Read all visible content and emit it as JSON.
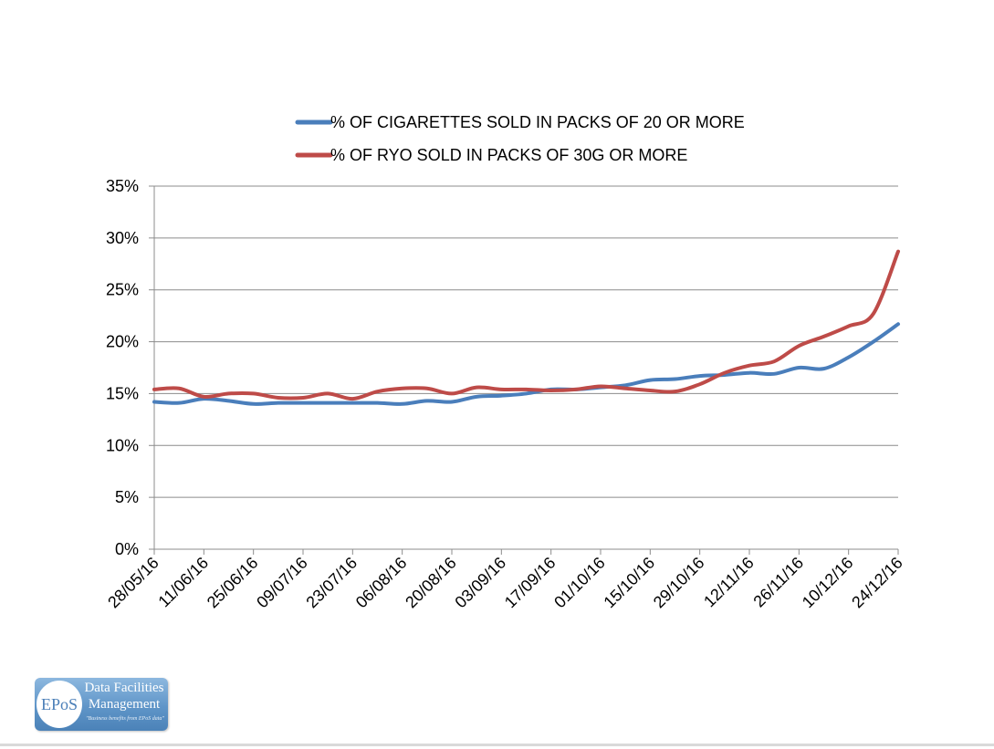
{
  "chart_data": {
    "type": "line",
    "title": "",
    "xlabel": "",
    "ylabel": "",
    "x": [
      "28/05/16",
      "04/06/16",
      "11/06/16",
      "18/06/16",
      "25/06/16",
      "02/07/16",
      "09/07/16",
      "16/07/16",
      "23/07/16",
      "30/07/16",
      "06/08/16",
      "13/08/16",
      "20/08/16",
      "27/08/16",
      "03/09/16",
      "10/09/16",
      "17/09/16",
      "24/09/16",
      "01/10/16",
      "08/10/16",
      "15/10/16",
      "22/10/16",
      "29/10/16",
      "05/11/16",
      "12/11/16",
      "19/11/16",
      "26/11/16",
      "03/12/16",
      "10/12/16",
      "17/12/16",
      "24/12/16"
    ],
    "x_tick_labels": [
      "28/05/16",
      "11/06/16",
      "25/06/16",
      "09/07/16",
      "23/07/16",
      "06/08/16",
      "20/08/16",
      "03/09/16",
      "17/09/16",
      "01/10/16",
      "15/10/16",
      "29/10/16",
      "12/11/16",
      "26/11/16",
      "10/12/16",
      "24/12/16"
    ],
    "y_ticks": [
      "0%",
      "5%",
      "10%",
      "15%",
      "20%",
      "25%",
      "30%",
      "35%"
    ],
    "ylim": [
      0,
      35
    ],
    "y_unit": "%",
    "grid": "horizontal",
    "legend_position": "top",
    "series": [
      {
        "name": "% OF CIGARETTES SOLD IN PACKS OF 20 OR MORE",
        "color": "#4a7ebb",
        "values": [
          14.2,
          14.1,
          14.5,
          14.3,
          14.0,
          14.1,
          14.1,
          14.1,
          14.1,
          14.1,
          14.0,
          14.3,
          14.2,
          14.7,
          14.8,
          15.0,
          15.4,
          15.4,
          15.6,
          15.8,
          16.3,
          16.4,
          16.7,
          16.8,
          17.0,
          16.9,
          17.5,
          17.4,
          18.5,
          20.0,
          21.7
        ]
      },
      {
        "name": "% OF RYO SOLD IN PACKS OF 30G OR MORE",
        "color": "#be4b48",
        "values": [
          15.4,
          15.5,
          14.7,
          15.0,
          15.0,
          14.6,
          14.6,
          15.0,
          14.5,
          15.2,
          15.5,
          15.5,
          15.0,
          15.6,
          15.4,
          15.4,
          15.3,
          15.4,
          15.7,
          15.5,
          15.3,
          15.2,
          15.9,
          17.0,
          17.7,
          18.1,
          19.6,
          20.5,
          21.5,
          22.7,
          28.7
        ]
      }
    ]
  },
  "logo": {
    "mark": "EPoS",
    "line1": "Data Facilities",
    "line2": "Management",
    "tagline": "\"Business benefits from EPoS data\""
  }
}
